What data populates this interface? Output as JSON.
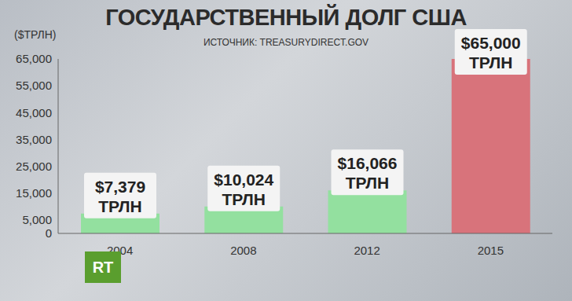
{
  "chart_data": {
    "type": "bar",
    "title": "ГОСУДАРСТВЕННЫЙ ДОЛГ США",
    "subtitle": "ИСТОЧНИК: TREASURYDIRECT.GOV",
    "y_label": "($ТРЛН)",
    "annotations": [
      "RT"
    ],
    "categories": [
      "2004",
      "2008",
      "2012",
      "2015"
    ],
    "values": [
      7379,
      10024,
      16066,
      65000
    ],
    "value_labels": [
      "$7,379 ТРЛН",
      "$10,024 ТРЛН",
      "$16,066 ТРЛН",
      "$65,000 ТРЛН"
    ],
    "colors": [
      "#93e09f",
      "#93e09f",
      "#93e09f",
      "#d8737b"
    ],
    "ylim": [
      0,
      65000
    ],
    "yticks": [
      0,
      {
        "value": 5000,
        "label": "5,000"
      },
      {
        "value": 15000,
        "label": "15,000"
      },
      {
        "value": 25000,
        "label": "25,000"
      },
      {
        "value": 35000,
        "label": "35,000"
      },
      {
        "value": 45000,
        "label": "45,000"
      },
      {
        "value": 55000,
        "label": "55,000"
      },
      {
        "value": 65000,
        "label": "65,000"
      }
    ],
    "grid": false,
    "data_labels": true
  }
}
